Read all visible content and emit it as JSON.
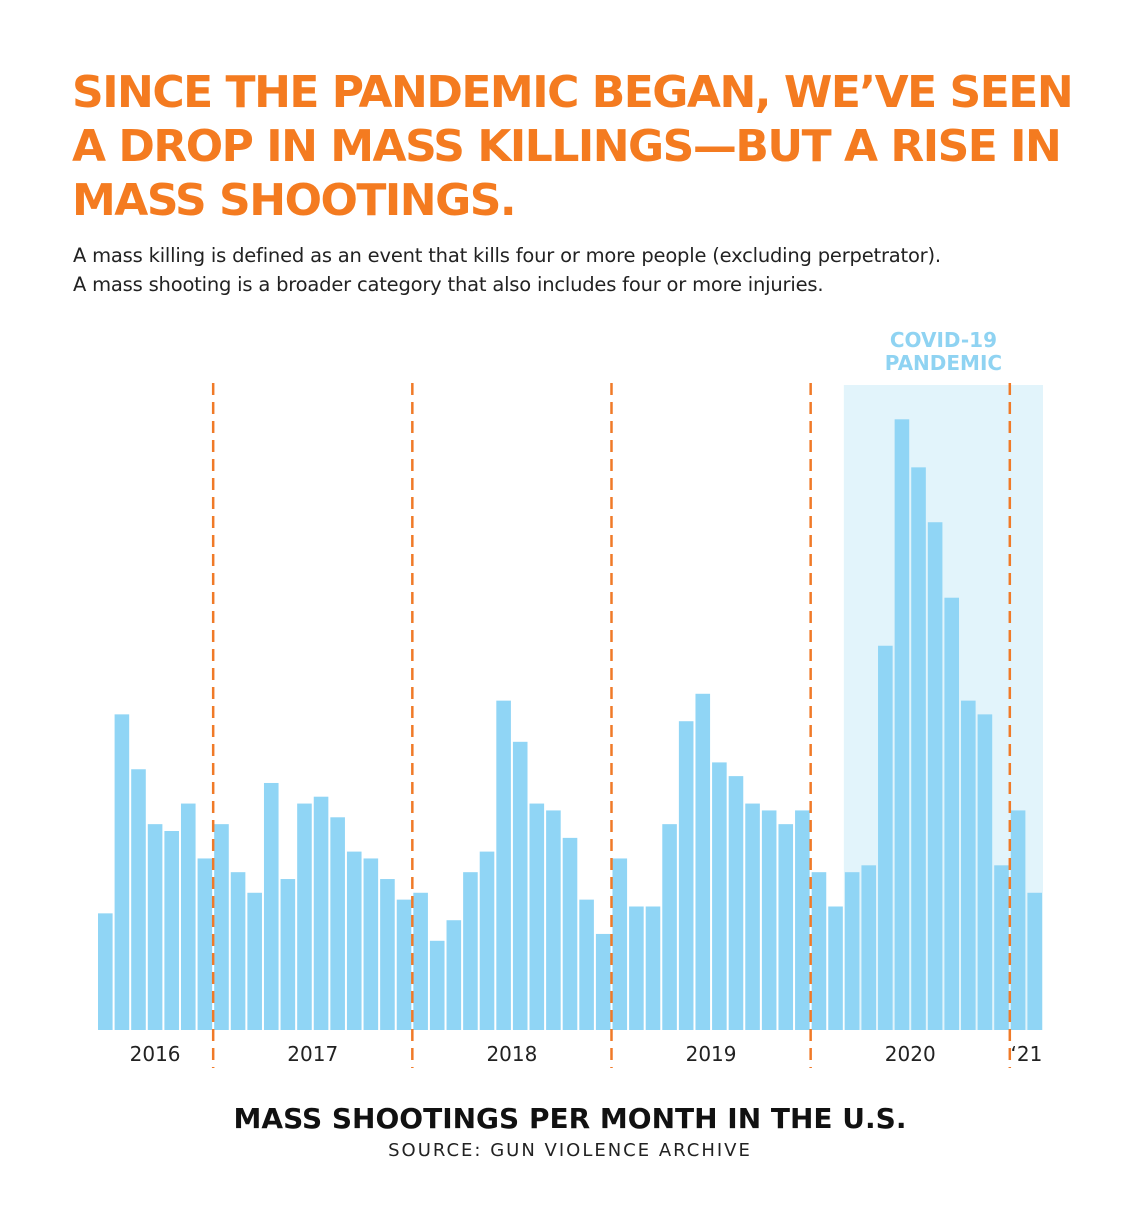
{
  "chart_data": {
    "type": "bar",
    "title": "SINCE THE PANDEMIC BEGAN, WE’VE SEEN A DROP IN MASS KILLINGS—BUT A RISE IN MASS SHOOTINGS.",
    "subtitle": [
      "A mass killing is defined as an event that kills four or more people (excluding perpetrator).",
      "A mass shooting is a broader category that also includes four or more injuries."
    ],
    "x_title": "MASS SHOOTINGS PER MONTH IN THE U.S.",
    "source": "SOURCE: GUN VIOLENCE ARCHIVE",
    "year_labels": [
      "2016",
      "2017",
      "2018",
      "2019",
      "2020",
      "‘21"
    ],
    "group_sizes": [
      7,
      12,
      12,
      12,
      12,
      2
    ],
    "categories": [
      null,
      null,
      null,
      null,
      null,
      null,
      null,
      null,
      null,
      null,
      null,
      null,
      null,
      null,
      null,
      null,
      null,
      null,
      null,
      null,
      null,
      null,
      null,
      null,
      null,
      null,
      null,
      null,
      null,
      null,
      null,
      null,
      null,
      null,
      null,
      null,
      null,
      null,
      null,
      null,
      null,
      null,
      null,
      null,
      null,
      null,
      null,
      null,
      null,
      null,
      null,
      null,
      null,
      null,
      null,
      null,
      null
    ],
    "values": [
      17,
      46,
      38,
      30,
      29,
      33,
      25,
      30,
      23,
      20,
      36,
      22,
      33,
      34,
      31,
      26,
      25,
      22,
      19,
      20,
      13,
      16,
      23,
      26,
      48,
      42,
      33,
      32,
      28,
      19,
      14,
      25,
      18,
      18,
      30,
      45,
      49,
      39,
      37,
      33,
      32,
      30,
      32,
      23,
      18,
      23,
      24,
      56,
      89,
      82,
      74,
      63,
      48,
      46,
      24,
      32,
      20
    ],
    "color": "#90d5f5",
    "divider_color": "#f07a28",
    "ylim": [
      0,
      94
    ],
    "highlight": {
      "label": [
        "COVID-19",
        "PANDEMIC"
      ],
      "start": 45,
      "color": "#e2f4fb",
      "label_color": "#8fd3f2"
    }
  }
}
